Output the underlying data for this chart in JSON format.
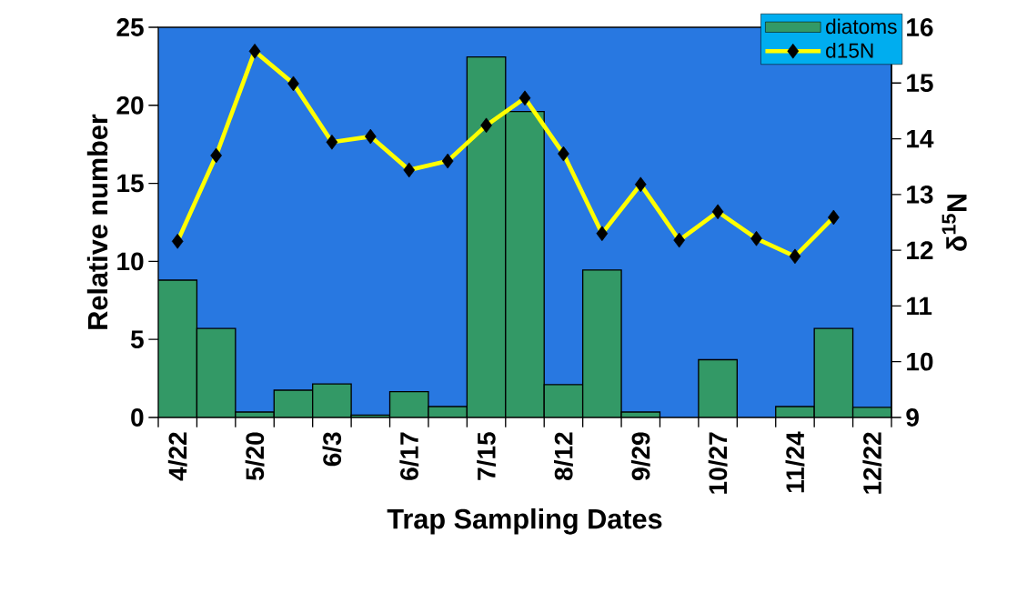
{
  "chart_data": {
    "type": "bar",
    "xlabel": "Trap Sampling Dates",
    "ylabel": "Relative number",
    "y2label": "δ$^{15}$N",
    "categories": [
      "4/22",
      null,
      "5/20",
      null,
      "6/3",
      null,
      "6/17",
      null,
      "7/15",
      null,
      "8/12",
      null,
      "9/29",
      null,
      "10/27",
      null,
      "11/24",
      null,
      "12/22"
    ],
    "series": [
      {
        "name": "diatoms",
        "color": "#339966",
        "values": [
          8.8,
          5.7,
          0.35,
          1.75,
          2.15,
          0.15,
          1.65,
          0.7,
          23.1,
          19.6,
          2.1,
          9.45,
          0.35,
          0,
          3.7,
          0,
          0.7,
          5.7,
          0.65
        ]
      },
      {
        "name": "d15N",
        "type": "line",
        "axis": "y2",
        "color": "#ffff00",
        "values": [
          12.16,
          13.7,
          15.57,
          14.99,
          13.94,
          14.04,
          13.44,
          13.6,
          14.24,
          14.73,
          13.73,
          12.3,
          13.18,
          12.18,
          12.69,
          12.21,
          11.89,
          12.59,
          null
        ]
      }
    ],
    "ylim": [
      0,
      25
    ],
    "yticks": [
      0,
      5,
      10,
      15,
      20,
      25
    ],
    "y2lim": [
      9,
      16
    ],
    "y2ticks": [
      9,
      10,
      11,
      12,
      13,
      14,
      15,
      16
    ],
    "marker": "diamond",
    "line_style": "solid",
    "legend": "top right"
  }
}
